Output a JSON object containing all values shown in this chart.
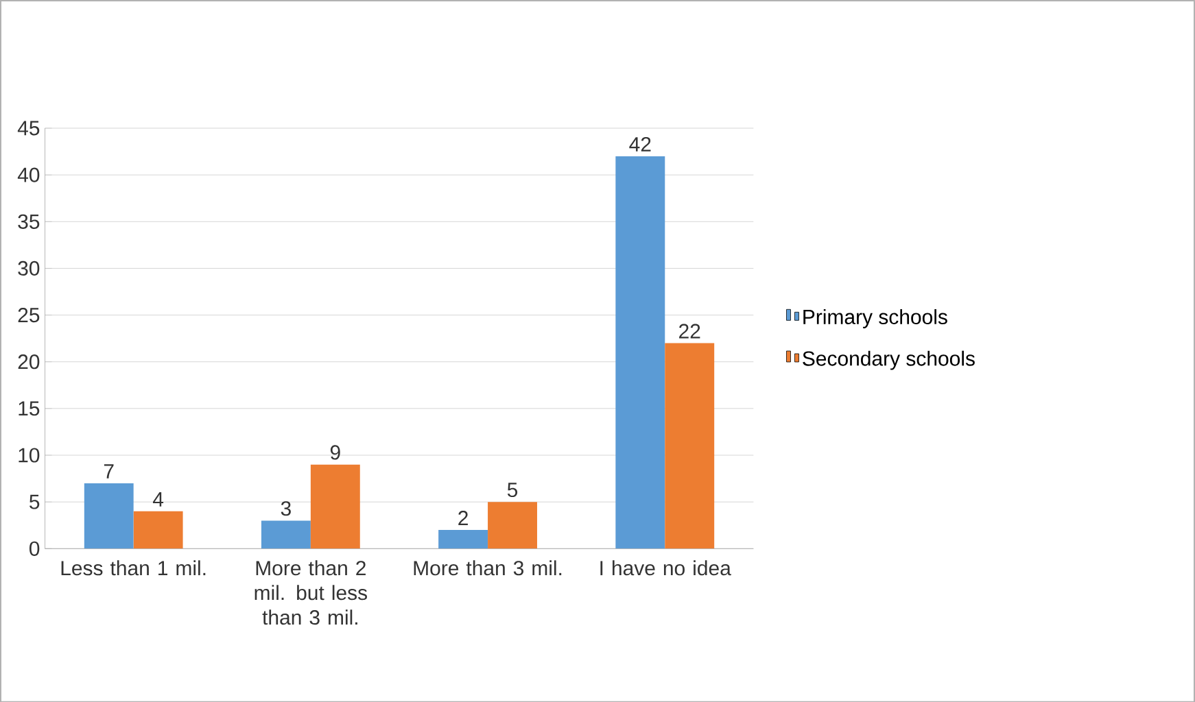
{
  "chart_data": {
    "type": "bar",
    "categories": [
      "Less than 1 mil.",
      "More than 2 mil. but less than 3 mil.",
      "More than 3 mil.",
      "I have no idea"
    ],
    "series": [
      {
        "name": "Primary schools",
        "color": "#5b9bd5",
        "values": [
          7,
          3,
          2,
          42
        ]
      },
      {
        "name": "Secondary schools",
        "color": "#ed7d31",
        "values": [
          4,
          9,
          5,
          22
        ]
      }
    ],
    "ylim": [
      0,
      45
    ],
    "yticks": [
      0,
      5,
      10,
      15,
      20,
      25,
      30,
      35,
      40,
      45
    ],
    "grid": "y",
    "legend": "right",
    "data_labels": true
  }
}
